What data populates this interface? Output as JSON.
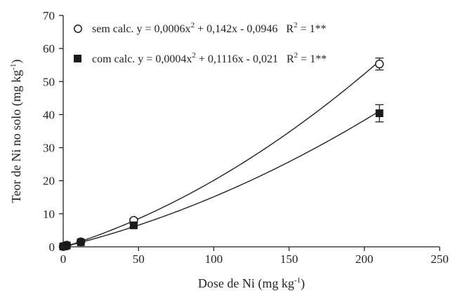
{
  "chart_data": {
    "type": "scatter",
    "title": "",
    "xlabel": {
      "main": "Dose de Ni (mg kg",
      "sup": "-1",
      "tail": ")"
    },
    "ylabel": {
      "main": "Teor de Ni no solo  (mg kg",
      "sup": "-1",
      "tail": ")"
    },
    "xlim": [
      0,
      250
    ],
    "ylim": [
      0,
      70
    ],
    "xticks": [
      0,
      50,
      100,
      150,
      200,
      250
    ],
    "yticks": [
      0,
      10,
      20,
      30,
      40,
      50,
      60,
      70
    ],
    "grid": false,
    "legend_position": "top-left",
    "series": [
      {
        "name": "sem calc.",
        "marker": "open-circle",
        "equation": {
          "a": "y = 0,0006x",
          "sup1": "2",
          "b": " + 0,142x - 0,0946",
          "r": "R",
          "sup2": "2",
          "c": " = 1**"
        },
        "coef": [
          0.0006,
          0.142,
          -0.0946
        ],
        "x": [
          0,
          1.17,
          2.34,
          11.7,
          46.8,
          210
        ],
        "y": [
          0.1,
          0.3,
          0.5,
          1.5,
          8.0,
          55.3
        ],
        "err": [
          0,
          0,
          0,
          0,
          0.6,
          1.8
        ]
      },
      {
        "name": "com calc.",
        "marker": "filled-square",
        "equation": {
          "a": "y = 0,0004x",
          "sup1": "2",
          "b": " + 0,1116x - 0,021",
          "r": "R",
          "sup2": "2",
          "c": " = 1**"
        },
        "coef": [
          0.0004,
          0.1116,
          -0.021
        ],
        "x": [
          0,
          1.17,
          2.34,
          11.7,
          46.8,
          210
        ],
        "y": [
          0.1,
          0.2,
          0.4,
          1.4,
          6.5,
          40.4
        ],
        "err": [
          0,
          0,
          0,
          0,
          0.5,
          2.6
        ]
      }
    ]
  }
}
